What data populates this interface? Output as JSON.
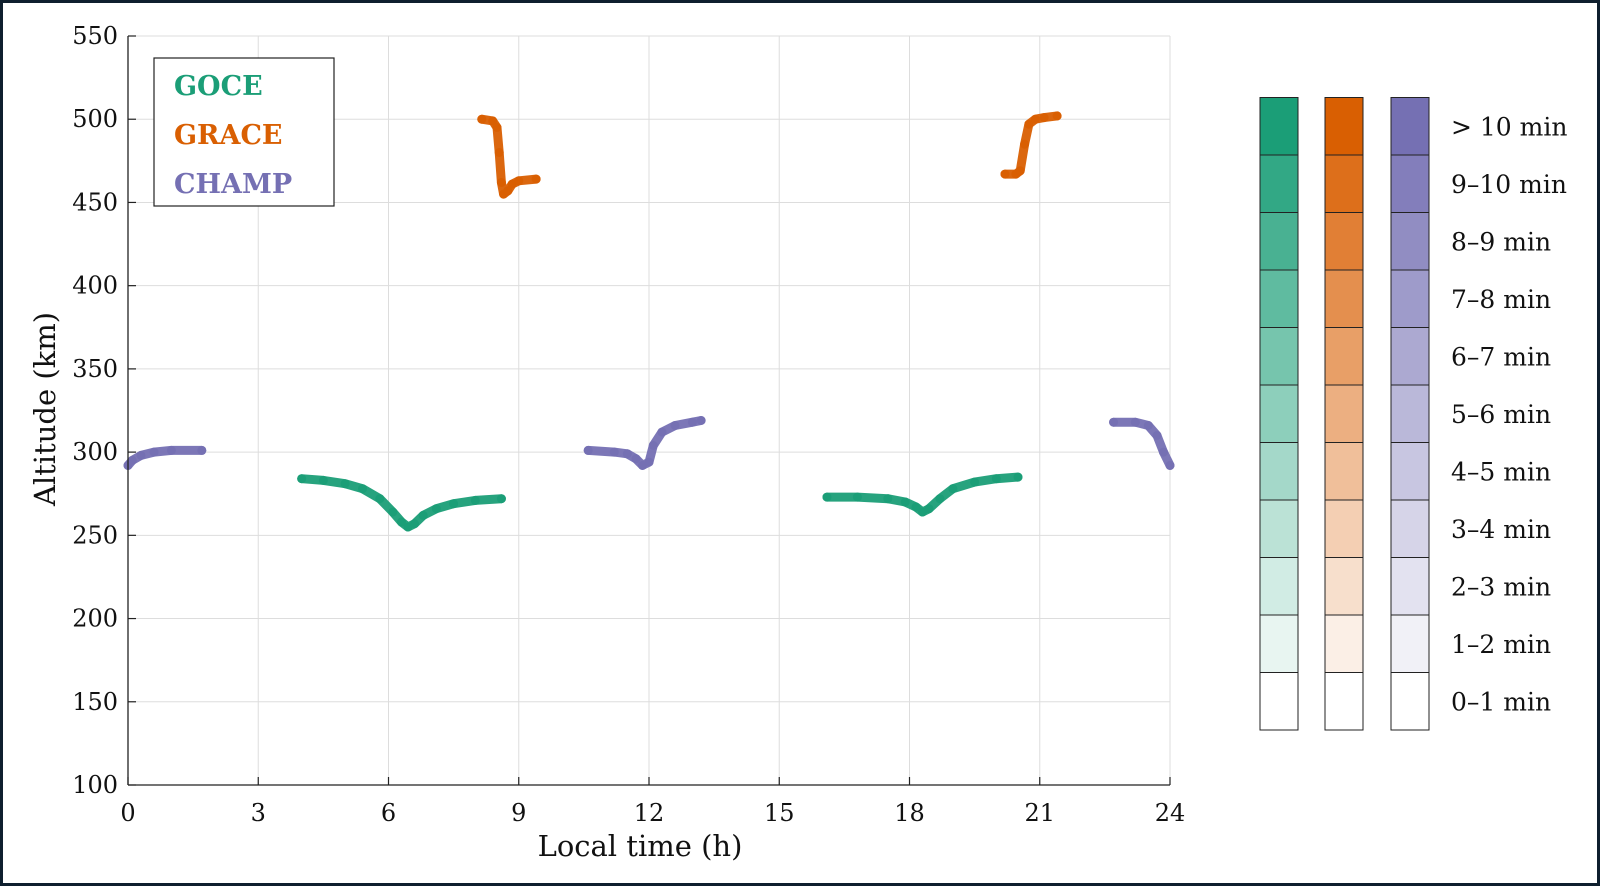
{
  "chart_data": {
    "type": "scatter",
    "title": "",
    "xlabel": "Local time (h)",
    "ylabel": "Altitude (km)",
    "xlim": [
      0,
      24
    ],
    "ylim": [
      100,
      550
    ],
    "xticks": [
      0,
      3,
      6,
      9,
      12,
      15,
      18,
      21,
      24
    ],
    "yticks": [
      100,
      150,
      200,
      250,
      300,
      350,
      400,
      450,
      500,
      550
    ],
    "grid": true,
    "legend_position": "top-left",
    "series": [
      {
        "name": "GOCE",
        "color": "#1b9e77",
        "segments": [
          [
            [
              4.0,
              284
            ],
            [
              4.5,
              283
            ],
            [
              5.0,
              281
            ],
            [
              5.4,
              278
            ],
            [
              5.8,
              272
            ],
            [
              6.1,
              264
            ],
            [
              6.3,
              258
            ],
            [
              6.45,
              255
            ],
            [
              6.6,
              257
            ],
            [
              6.8,
              262
            ],
            [
              7.1,
              266
            ],
            [
              7.5,
              269
            ],
            [
              8.0,
              271
            ],
            [
              8.6,
              272
            ]
          ],
          [
            [
              16.1,
              273
            ],
            [
              16.8,
              273
            ],
            [
              17.5,
              272
            ],
            [
              17.9,
              270
            ],
            [
              18.15,
              267
            ],
            [
              18.3,
              264
            ],
            [
              18.45,
              266
            ],
            [
              18.7,
              272
            ],
            [
              19.0,
              278
            ],
            [
              19.5,
              282
            ],
            [
              20.0,
              284
            ],
            [
              20.5,
              285
            ]
          ]
        ]
      },
      {
        "name": "GRACE",
        "color": "#d95f02",
        "segments": [
          [
            [
              8.15,
              500
            ],
            [
              8.4,
              499
            ],
            [
              8.5,
              495
            ],
            [
              8.55,
              480
            ],
            [
              8.6,
              462
            ],
            [
              8.65,
              455
            ],
            [
              8.75,
              457
            ],
            [
              8.85,
              461
            ],
            [
              9.0,
              463
            ],
            [
              9.4,
              464
            ]
          ],
          [
            [
              20.2,
              467
            ],
            [
              20.45,
              467
            ],
            [
              20.55,
              469
            ],
            [
              20.65,
              485
            ],
            [
              20.75,
              497
            ],
            [
              20.9,
              500
            ],
            [
              21.1,
              501
            ],
            [
              21.4,
              502
            ]
          ]
        ]
      },
      {
        "name": "CHAMP",
        "color": "#7570b3",
        "segments": [
          [
            [
              0.0,
              292
            ],
            [
              0.1,
              295
            ],
            [
              0.3,
              298
            ],
            [
              0.6,
              300
            ],
            [
              1.0,
              301
            ],
            [
              1.7,
              301
            ]
          ],
          [
            [
              10.6,
              301
            ],
            [
              11.2,
              300
            ],
            [
              11.5,
              299
            ],
            [
              11.7,
              296
            ],
            [
              11.85,
              292
            ],
            [
              12.0,
              294
            ],
            [
              12.1,
              304
            ],
            [
              12.3,
              312
            ],
            [
              12.6,
              316
            ],
            [
              13.0,
              318
            ],
            [
              13.2,
              319
            ]
          ],
          [
            [
              22.7,
              318
            ],
            [
              23.2,
              318
            ],
            [
              23.5,
              316
            ],
            [
              23.7,
              310
            ],
            [
              23.85,
              300
            ],
            [
              24.0,
              292
            ]
          ]
        ]
      }
    ],
    "colorbar": {
      "labels": [
        "0–1 min",
        "1–2 min",
        "2–3 min",
        "3–4 min",
        "4–5 min",
        "5–6 min",
        "6–7 min",
        "7–8 min",
        "8–9 min",
        "9–10 min",
        "> 10 min"
      ],
      "levels": [
        0.0,
        0.1,
        0.2,
        0.3,
        0.4,
        0.5,
        0.6,
        0.7,
        0.8,
        0.9,
        1.0
      ]
    }
  }
}
